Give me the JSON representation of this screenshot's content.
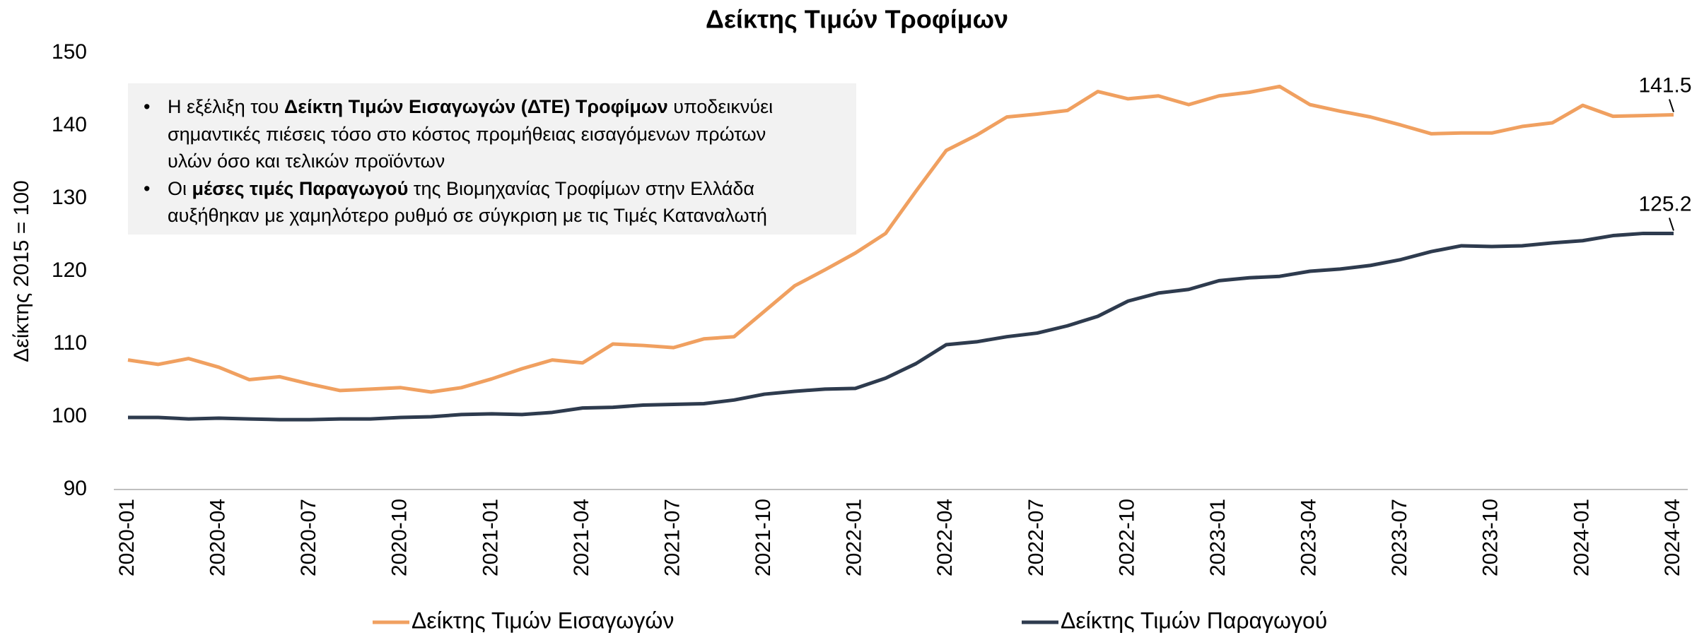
{
  "chart_data": {
    "type": "line",
    "title": "Δείκτης Τιμών Τροφίμων",
    "y_label": "Δείκτης 2015 = 100",
    "categories": [
      "2020-01",
      null,
      null,
      "2020-04",
      null,
      null,
      "2020-07",
      null,
      null,
      "2020-10",
      null,
      null,
      "2021-01",
      null,
      null,
      "2021-04",
      null,
      null,
      "2021-07",
      null,
      null,
      "2021-10",
      null,
      null,
      "2022-01",
      null,
      null,
      "2022-04",
      null,
      null,
      "2022-07",
      null,
      null,
      "2022-10",
      null,
      null,
      "2023-01",
      null,
      null,
      "2023-04",
      null,
      null,
      "2023-07",
      null,
      null,
      "2023-10",
      null,
      null,
      "2024-01",
      null,
      null,
      "2024-04"
    ],
    "series": [
      {
        "name": "Δείκτης Τιμών Εισαγωγών",
        "color": "#f0a060",
        "values": [
          107.8,
          107.2,
          108.0,
          106.8,
          105.1,
          105.5,
          104.5,
          103.6,
          103.8,
          104.0,
          103.4,
          104.0,
          105.2,
          106.6,
          107.8,
          107.4,
          110.0,
          109.8,
          109.5,
          110.7,
          111.0,
          114.5,
          118.0,
          120.2,
          122.5,
          125.2,
          131.0,
          136.6,
          138.7,
          141.2,
          141.6,
          142.1,
          144.7,
          143.7,
          144.1,
          142.9,
          144.1,
          144.6,
          145.4,
          142.9,
          142.0,
          141.2,
          140.1,
          138.9,
          139.0,
          139.0,
          139.9,
          140.4,
          142.8,
          141.3,
          141.4,
          141.5
        ]
      },
      {
        "name": "Δείκτης Τιμών Παραγωγού",
        "color": "#2e3b4e",
        "values": [
          99.9,
          99.9,
          99.7,
          99.8,
          99.7,
          99.6,
          99.6,
          99.7,
          99.7,
          99.9,
          100.0,
          100.3,
          100.4,
          100.3,
          100.6,
          101.2,
          101.3,
          101.6,
          101.7,
          101.8,
          102.3,
          103.1,
          103.5,
          103.8,
          103.9,
          105.3,
          107.3,
          109.9,
          110.3,
          111.0,
          111.5,
          112.5,
          113.8,
          115.9,
          117.0,
          117.5,
          118.7,
          119.1,
          119.3,
          120.0,
          120.3,
          120.8,
          121.6,
          122.7,
          123.5,
          123.4,
          123.5,
          123.9,
          124.2,
          124.9,
          125.2,
          125.2
        ]
      }
    ],
    "ylim": [
      90,
      150
    ],
    "yticks": [
      90,
      100,
      110,
      120,
      130,
      140,
      150
    ],
    "last_value_labels": true,
    "annotation": [
      [
        [
          {
            "text": "Η εξέλιξη του "
          },
          {
            "text": "Δείκτη Τιμών Εισαγωγών (ΔΤΕ) Τροφίμων",
            "bold": true
          },
          {
            "text": " υποδεικνύει"
          }
        ],
        [
          {
            "text": "σημαντικές πιέσεις τόσο στο κόστος προμήθειας εισαγόμενων πρώτων"
          }
        ],
        [
          {
            "text": "υλών όσο και τελικών προϊόντων"
          }
        ]
      ],
      [
        [
          {
            "text": "Οι "
          },
          {
            "text": "μέσες τιμές Παραγωγού",
            "bold": true
          },
          {
            "text": " της Βιομηχανίας Τροφίμων στην Ελλάδα"
          }
        ],
        [
          {
            "text": "αυξήθηκαν με χαμηλότερο ρυθμό σε σύγκριση με τις Τιμές Καταναλωτή"
          }
        ]
      ]
    ]
  }
}
